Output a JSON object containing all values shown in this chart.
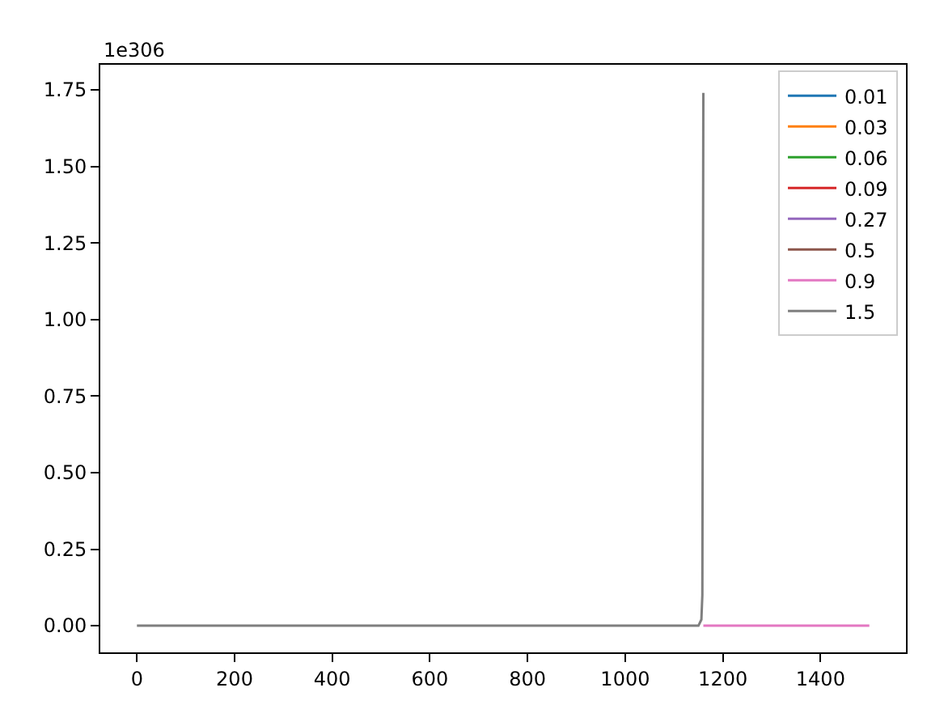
{
  "chart_data": {
    "type": "line",
    "annotations": [
      "1e306"
    ],
    "xlim": [
      -75,
      1575
    ],
    "xticks": [
      0,
      200,
      400,
      600,
      800,
      1000,
      1200,
      1400
    ],
    "ylim": [
      -0.087,
      1.832
    ],
    "yticks": [
      {
        "value": 0,
        "label": "0.00"
      },
      0.25,
      {
        "value": 0.5,
        "label": "0.50"
      },
      0.75,
      {
        "value": 1,
        "label": "1.00"
      },
      1.25,
      {
        "value": 1.5,
        "label": "1.50"
      },
      1.75
    ],
    "legend": "top right",
    "marker": "none",
    "line_style": "solid",
    "series": [
      {
        "name": "0.01",
        "color": "#1f77b4"
      },
      {
        "name": "0.03",
        "color": "#ff7f0e"
      },
      {
        "name": "0.06",
        "color": "#2ca02c"
      },
      {
        "name": "0.09",
        "color": "#d62728"
      },
      {
        "name": "0.27",
        "color": "#9467bd"
      },
      {
        "name": "0.5",
        "color": "#8c564b"
      },
      {
        "name": "0.9",
        "color": "#e377c2",
        "x": [
          1160,
          1500
        ],
        "values": [
          0,
          0
        ]
      },
      {
        "name": "1.5",
        "color": "#7f7f7f",
        "x": [
          0,
          1150,
          1156,
          1158,
          1160
        ],
        "values": [
          0,
          0,
          0.02,
          0.1,
          1.74
        ]
      }
    ]
  }
}
